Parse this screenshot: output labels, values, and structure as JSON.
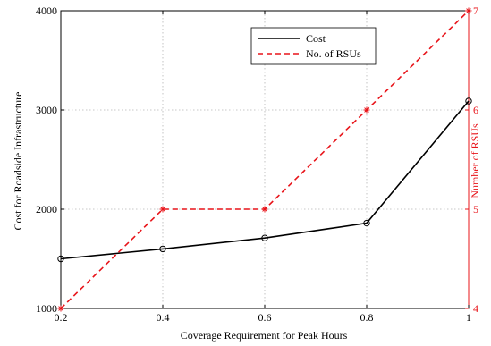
{
  "chart_data": {
    "type": "line",
    "xlabel": "Coverage Requirement for Peak Hours",
    "ylabel_left": "Cost for Roadside Infrastructure",
    "ylabel_right": "Number of RSUs",
    "xlim": [
      0.2,
      1
    ],
    "ylim_left": [
      1000,
      4000
    ],
    "ylim_right": [
      4,
      7
    ],
    "x_ticks": [
      "0.2",
      "0.4",
      "0.6",
      "0.8",
      "1"
    ],
    "y_left_ticks": [
      "1000",
      "2000",
      "3000",
      "4000"
    ],
    "y_right_ticks": [
      "4",
      "5",
      "6",
      "7"
    ],
    "grid": true,
    "legend_position": "top-center",
    "series": [
      {
        "name": "Cost",
        "axis": "left",
        "color": "#000000",
        "line_style": "solid",
        "marker": "circle",
        "x": [
          0.2,
          0.4,
          0.6,
          0.8,
          1.0
        ],
        "y": [
          1500,
          1600,
          1710,
          1860,
          3090
        ]
      },
      {
        "name": "No. of RSUs",
        "axis": "right",
        "color": "#e8141a",
        "line_style": "dashed",
        "marker": "star",
        "x": [
          0.2,
          0.4,
          0.6,
          0.8,
          1.0
        ],
        "y": [
          4,
          5,
          5,
          6,
          7
        ]
      }
    ]
  }
}
